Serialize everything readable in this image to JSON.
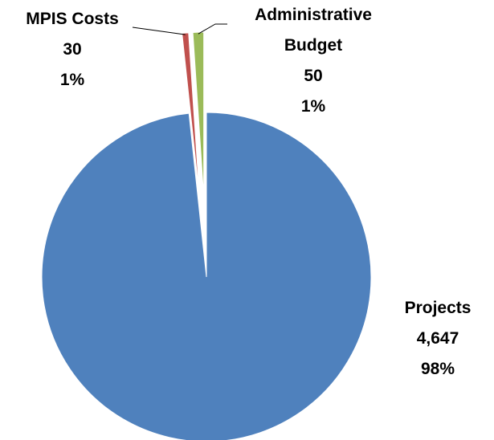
{
  "chart_data": {
    "type": "pie",
    "categories": [
      "Projects",
      "MPIS Costs",
      "Administrative Budget"
    ],
    "values": [
      4647,
      30,
      50
    ],
    "value_labels": [
      "4,647",
      "30",
      "50"
    ],
    "percent_labels": [
      "98%",
      "1%",
      "1%"
    ],
    "colors": [
      "#4f81bd",
      "#c0504d",
      "#9bbb59"
    ],
    "start_angle": 0,
    "direction": "clockwise"
  }
}
